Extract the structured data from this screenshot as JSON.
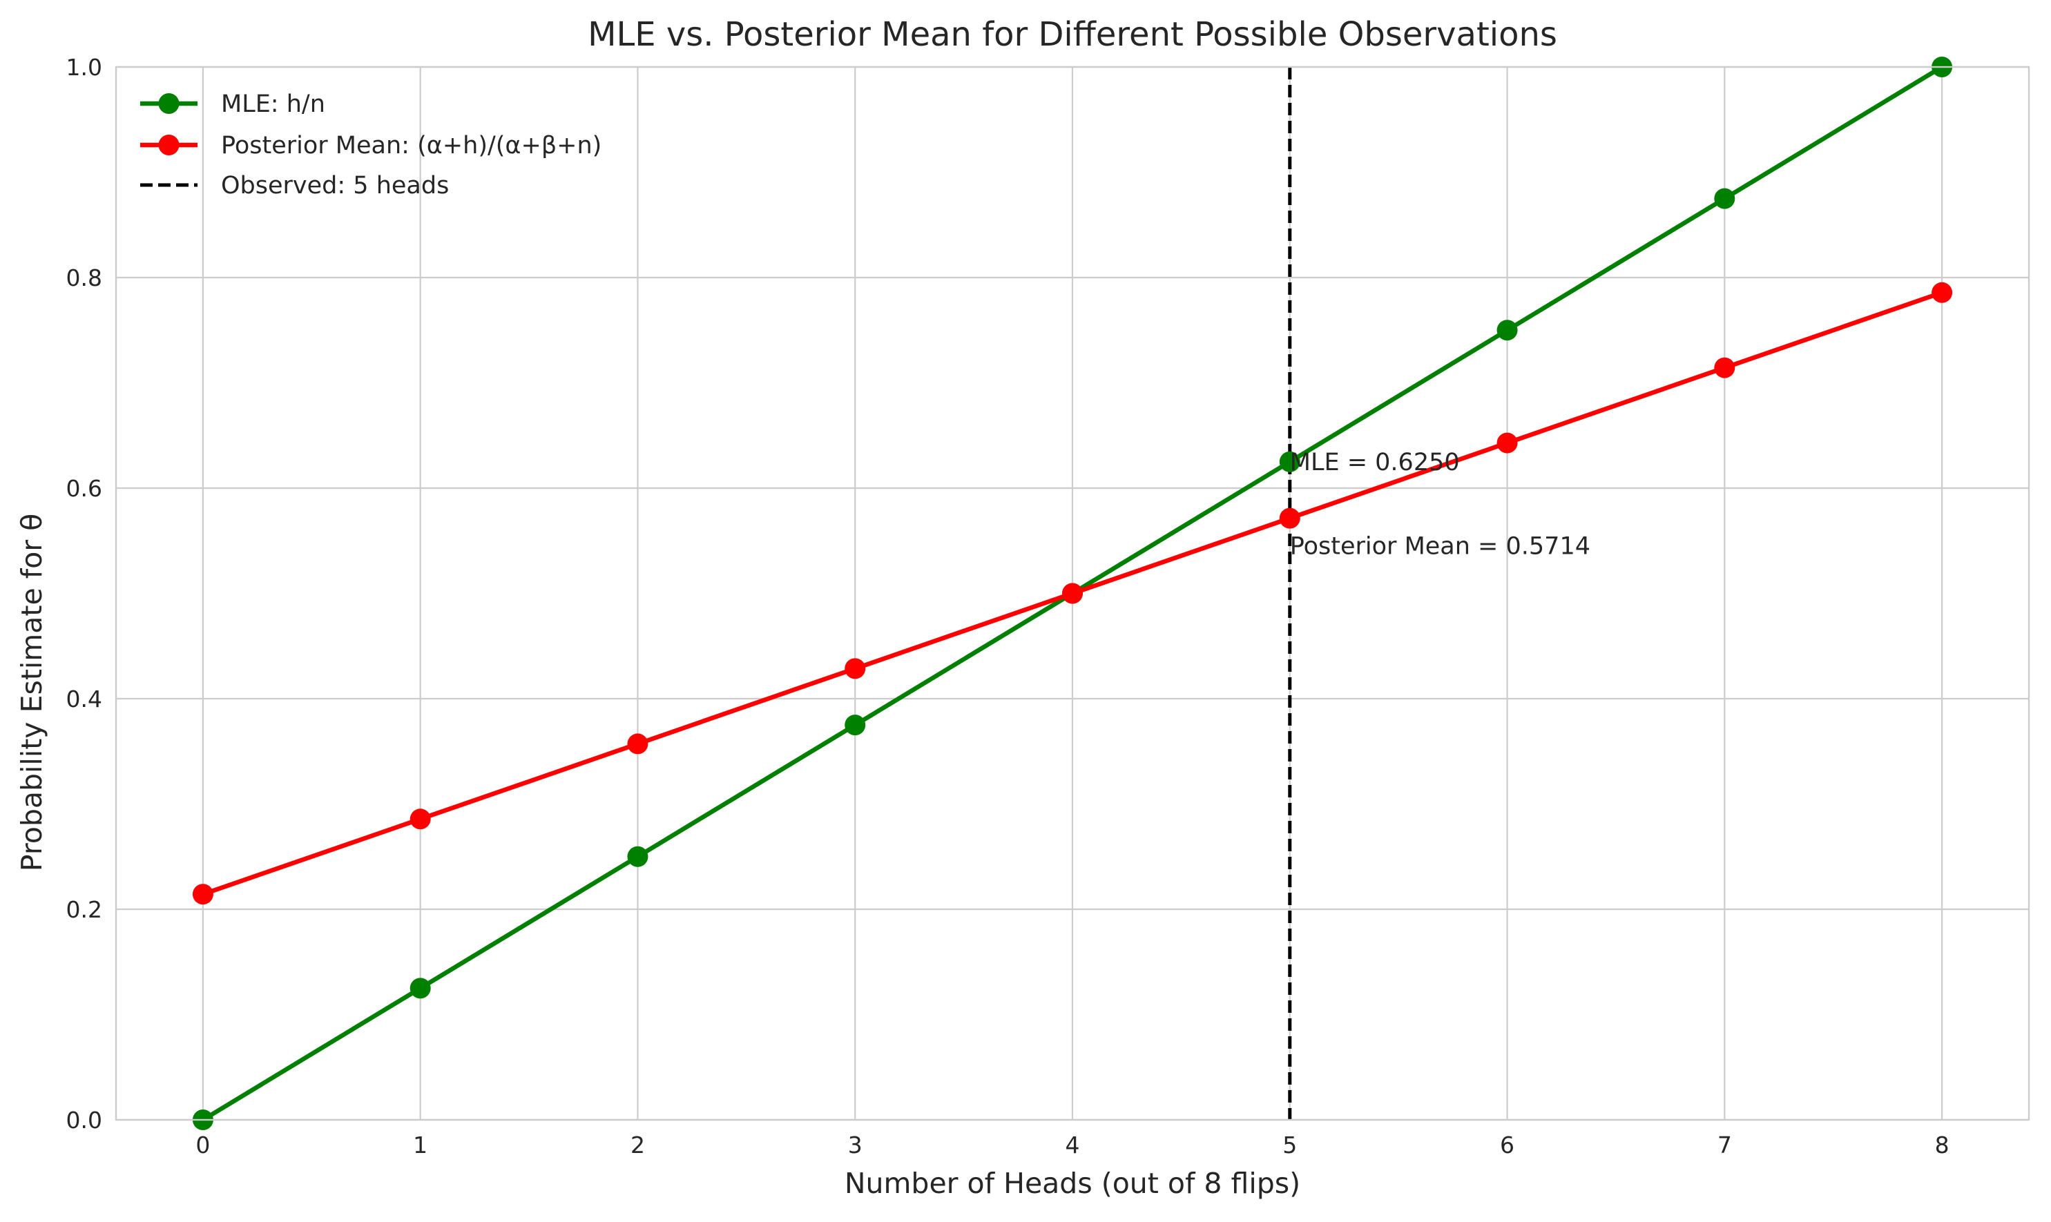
{
  "chart_data": {
    "type": "line",
    "title": "MLE vs. Posterior Mean for Different Possible Observations",
    "xlabel": "Number of Heads (out of 8 flips)",
    "ylabel": "Probability Estimate for θ",
    "xlim": [
      -0.4,
      8.4
    ],
    "ylim": [
      0.0,
      1.0
    ],
    "x_ticks": [
      "0",
      "1",
      "2",
      "3",
      "4",
      "5",
      "6",
      "7",
      "8"
    ],
    "y_ticks": [
      "0.0",
      "0.2",
      "0.4",
      "0.6",
      "0.8",
      "1.0"
    ],
    "grid": true,
    "legend_position": "top-left",
    "x": [
      0,
      1,
      2,
      3,
      4,
      5,
      6,
      7,
      8
    ],
    "series": [
      {
        "name": "MLE: h/n",
        "color": "#008000",
        "marker": "circle",
        "values": [
          0.0,
          0.125,
          0.25,
          0.375,
          0.5,
          0.625,
          0.75,
          0.875,
          1.0
        ]
      },
      {
        "name": "Posterior Mean: (α+h)/(α+β+n)",
        "color": "#ff0000",
        "marker": "circle",
        "values": [
          0.2143,
          0.2857,
          0.3571,
          0.4286,
          0.5,
          0.5714,
          0.6429,
          0.7143,
          0.7857
        ]
      }
    ],
    "vline": {
      "x": 5,
      "label": "Observed: 5 heads",
      "color": "#000000",
      "style": "dashed"
    },
    "annotations": [
      {
        "text": "MLE = 0.6250",
        "x": 5,
        "y": 0.625
      },
      {
        "text": "Posterior Mean = 0.5714",
        "x": 5,
        "y": 0.5714
      }
    ]
  }
}
